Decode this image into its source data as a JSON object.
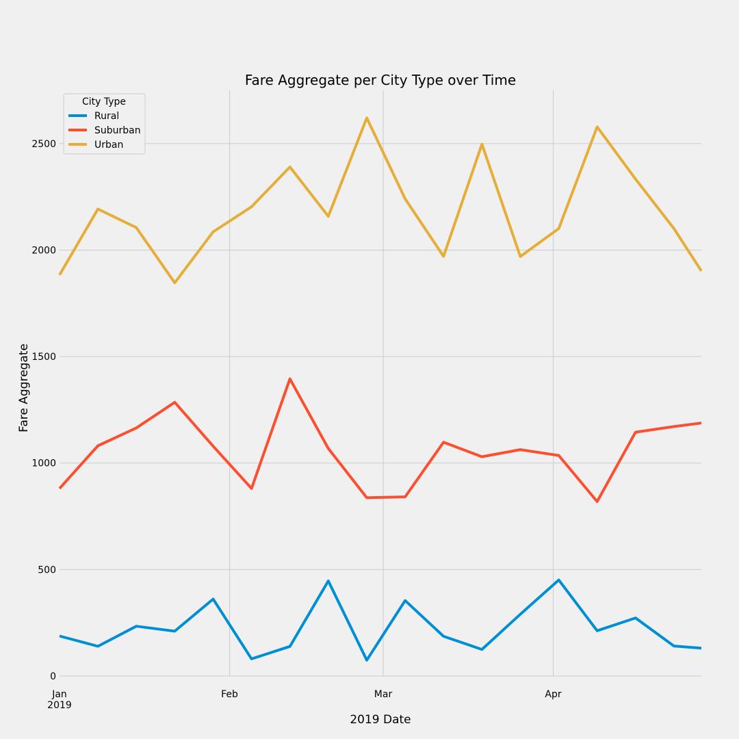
{
  "chart_data": {
    "type": "line",
    "title": "Fare Aggregate per City Type over Time",
    "xlabel": "2019 Date",
    "ylabel": "Fare Aggregate",
    "x_ticks": [
      {
        "date": "2019-01-01",
        "label": "Jan",
        "sublabel": "2019"
      },
      {
        "date": "2019-02-01",
        "label": "Feb",
        "sublabel": ""
      },
      {
        "date": "2019-03-01",
        "label": "Mar",
        "sublabel": ""
      },
      {
        "date": "2019-04-01",
        "label": "Apr",
        "sublabel": ""
      }
    ],
    "xlim": [
      "2019-01-01",
      "2019-04-28"
    ],
    "ylim": [
      0,
      2750
    ],
    "y_ticks": [
      0,
      500,
      1000,
      1500,
      2000,
      2500
    ],
    "grid": true,
    "legend_title": "City Type",
    "legend_position": "top-left",
    "x": [
      "2019-01-01",
      "2019-01-08",
      "2019-01-15",
      "2019-01-22",
      "2019-01-29",
      "2019-02-05",
      "2019-02-12",
      "2019-02-19",
      "2019-02-26",
      "2019-03-05",
      "2019-03-12",
      "2019-03-19",
      "2019-03-26",
      "2019-04-02",
      "2019-04-09",
      "2019-04-16",
      "2019-04-23",
      "2019-04-28"
    ],
    "series": [
      {
        "name": "Rural",
        "color": "#008fd5",
        "values": [
          187.9,
          139.8,
          233.9,
          210.9,
          361.5,
          80.5,
          139.2,
          446.6,
          74.5,
          354.2,
          186.8,
          124.9,
          290.1,
          451.2,
          212.6,
          272.8,
          141.0,
          131.0
        ]
      },
      {
        "name": "Suburban",
        "color": "#fc4f30",
        "values": [
          880.5,
          1081.2,
          1165.0,
          1285.5,
          1079.0,
          880.7,
          1395.3,
          1068.6,
          837.3,
          841.5,
          1097.8,
          1029.8,
          1062.9,
          1035.8,
          819.3,
          1144.9,
          1171.2,
          1188.0
        ]
      },
      {
        "name": "Urban",
        "color": "#e5ae38",
        "values": [
          1883.3,
          2192.7,
          2105.5,
          1846.3,
          2085.5,
          2203.3,
          2390.3,
          2158.6,
          2620.5,
          2240.6,
          1970.6,
          2497.2,
          1969.6,
          2100.9,
          2578.6,
          2333.4,
          2101.1,
          1902.0
        ]
      }
    ]
  }
}
